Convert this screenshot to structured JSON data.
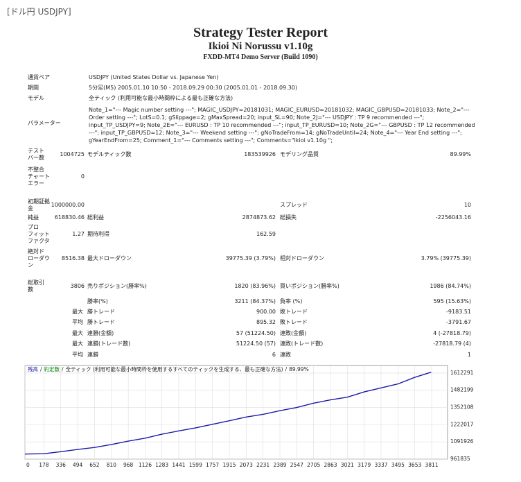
{
  "tag": "[ドル円 USDJPY]",
  "header": {
    "title": "Strategy Tester Report",
    "subtitle": "Ikioi Ni Norussu v1.10g",
    "server": "FXDD-MT4 Demo Server (Build 1090)"
  },
  "info": [
    {
      "label": "通貨ペア",
      "value": "USDJPY (United States Dollar vs. Japanese Yen)"
    },
    {
      "label": "期間",
      "value": "5分足(M5) 2005.01.10 10:50 - 2018.09.29 00:30 (2005.01.01 - 2018.09.30)"
    },
    {
      "label": "モデル",
      "value": "全ティック (利用可能な最小時間枠による最も正確な方法)"
    },
    {
      "label": "パラメーター",
      "value": "Note_1=\"--- Magic number setting ---\"; MAGIC_USDJPY=20181031; MAGIC_EURUSD=20181032; MAGIC_GBPUSD=20181033; Note_2=\"--- Order setting ---\"; LotS=0.1; gSlippage=2; gMaxSpread=20; input_SL=90; Note_2J=\"--- USDJPY : TP 9 recommended ---\"; input_TP_USDJPY=9; Note_2E=\"--- EURUSD : TP 10 recommended ---\"; input_TP_EURUSD=10; Note_2G=\"--- GBPUSD : TP 12 recommended ---\"; input_TP_GBPUSD=12; Note_3=\"--- Weekend setting ---\"; gNoTradeFrom=14; gNoTradeUntil=24; Note_4=\"--- Year End setting ---\"; gYearEndFrom=25; Comment_1=\"--- Comments setting ---\"; Comments=\"Ikioi v1.10g \";"
    }
  ],
  "stats": [
    {
      "label": "テスト\nバー数",
      "value": "1004725",
      "label2": "モデルティック数",
      "value2": "183539926",
      "label3": "モデリング品質",
      "value3": "89.99%"
    },
    {
      "label": "不整合\nチャート\nエラー",
      "value": "0"
    },
    {
      "label": "初期証拠\n金",
      "value": "1000000.00",
      "label3": "スプレッド",
      "value3": "10"
    },
    {
      "label": "純益",
      "value": "618830.46",
      "label2": "総利益",
      "value2": "2874873.62",
      "label3": "総損失",
      "value3": "-2256043.16"
    },
    {
      "label": "プロ\nフィット\nファクタ",
      "value": "1.27",
      "label2": "期待利得",
      "value2": "162.59"
    },
    {
      "label": "絶対ド\nローダウ\nン",
      "value": "8516.38",
      "label2": "最大ドローダウン",
      "value2": "39775.39 (3.79%)",
      "label3": "相対ドローダウン",
      "value3": "3.79% (39775.39)"
    },
    {
      "label": "総取引\n数",
      "value": "3806",
      "label2": "売りポジション(勝率%)",
      "value2": "1820 (83.96%)",
      "label3": "買いポジション(勝率%)",
      "value3": "1986 (84.74%)"
    },
    {
      "label2": "勝率(%)",
      "value2": "3211 (84.37%)",
      "label3": "負率 (%)",
      "value3": "595 (15.63%)"
    },
    {
      "prefix": "最大",
      "label2": "勝トレード",
      "value2": "900.00",
      "label3": "敗トレード",
      "value3": "-9183.51"
    },
    {
      "prefix": "平均",
      "label2": "勝トレード",
      "value2": "895.32",
      "label3": "敗トレード",
      "value3": "-3791.67"
    },
    {
      "prefix": "最大",
      "label2": "連勝(金額)",
      "value2": "57 (51224.50)",
      "label3": "連敗(金額)",
      "value3": "4 (-27818.79)"
    },
    {
      "prefix": "最大",
      "label2": "連勝(トレード数)",
      "value2": "51224.50 (57)",
      "label3": "連敗(トレード数)",
      "value3": "-27818.79 (4)"
    },
    {
      "prefix": "平均",
      "label2": "連勝",
      "value2": "6",
      "label3": "連敗",
      "value3": "1"
    }
  ],
  "chart_data": {
    "type": "line",
    "legend_separator": "/",
    "volume_label": "約定数",
    "volume_color": "#008000",
    "model": "全ティック (利用可能な最小時間枠を使用するすべてのティックを生成する、最も正確な方法)",
    "quality": "89.99%",
    "x": [
      0,
      178,
      336,
      494,
      652,
      810,
      968,
      1126,
      1283,
      1441,
      1599,
      1757,
      1915,
      2073,
      2231,
      2389,
      2547,
      2705,
      2863,
      3021,
      3179,
      3337,
      3495,
      3653,
      3806
    ],
    "series": [
      {
        "name": "残高",
        "color": "#1a1aa6",
        "values": [
          1000000,
          1003000,
          1018000,
          1035000,
          1050000,
          1072000,
          1098000,
          1120000,
          1150000,
          1175000,
          1198000,
          1225000,
          1252000,
          1280000,
          1300000,
          1328000,
          1352000,
          1385000,
          1410000,
          1430000,
          1470000,
          1500000,
          1530000,
          1580000,
          1618830
        ]
      }
    ],
    "xlim": [
      0,
      3960
    ],
    "ylim": [
      961835,
      1669500
    ],
    "xticks": [
      0,
      178,
      336,
      494,
      652,
      810,
      968,
      1126,
      1283,
      1441,
      1599,
      1757,
      1915,
      2073,
      2231,
      2389,
      2547,
      2705,
      2863,
      3021,
      3179,
      3337,
      3495,
      3653,
      3811
    ],
    "yticks": [
      961835,
      1091926,
      1222017,
      1352108,
      1482199,
      1612291
    ],
    "grid": true
  }
}
